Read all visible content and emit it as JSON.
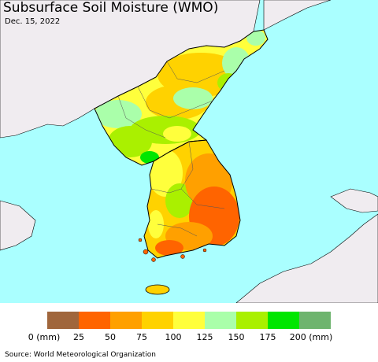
{
  "map": {
    "title": "Subsurface Soil Moisture (WMO)",
    "date": "Dec. 15, 2022",
    "colors": {
      "sea": "#aaffff",
      "other_land": "#f0ecf0",
      "border": "#000000"
    }
  },
  "legend": {
    "unit_start": "0 (mm)",
    "unit_end": "200 (mm)",
    "ticks": [
      "25",
      "50",
      "75",
      "100",
      "125",
      "150",
      "175"
    ],
    "swatches": [
      {
        "range": "0-25",
        "color": "#a0663c"
      },
      {
        "range": "25-50",
        "color": "#ff6400"
      },
      {
        "range": "50-75",
        "color": "#ffa000"
      },
      {
        "range": "75-100",
        "color": "#ffd200"
      },
      {
        "range": "100-125",
        "color": "#ffff3c"
      },
      {
        "range": "125-150",
        "color": "#aaffaa"
      },
      {
        "range": "150-175",
        "color": "#aaf000"
      },
      {
        "range": "175-200",
        "color": "#00e600"
      },
      {
        "range": "200+",
        "color": "#6eb46e"
      }
    ]
  },
  "footer": {
    "source": "Source: World Meteorological Organization"
  }
}
